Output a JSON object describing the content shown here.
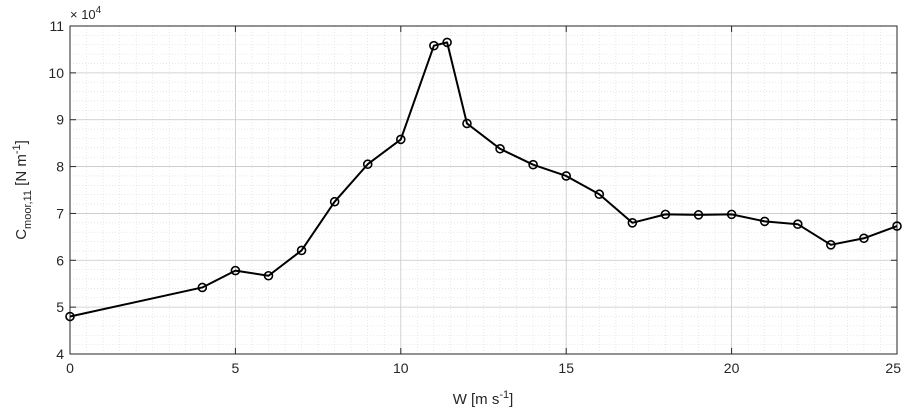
{
  "chart_data": {
    "type": "line",
    "title": "",
    "xlabel": {
      "base": "W [m s",
      "sup": "-1",
      "tail": "]"
    },
    "ylabel": {
      "base": "C",
      "sub": "moor,11",
      "mid": " [N m",
      "sup": "-1",
      "tail": "]"
    },
    "y_multiplier": {
      "prefix": "× 10",
      "exp": "4"
    },
    "xlim": [
      0,
      25
    ],
    "ylim": [
      4,
      11
    ],
    "x_ticks": [
      0,
      5,
      10,
      15,
      20,
      25
    ],
    "y_ticks": [
      4,
      5,
      6,
      7,
      8,
      9,
      10,
      11
    ],
    "x_tick_labels": [
      "0",
      "5",
      "10",
      "15",
      "20",
      "25"
    ],
    "y_tick_labels": [
      "4",
      "5",
      "6",
      "7",
      "8",
      "9",
      "10",
      "11"
    ],
    "grid": true,
    "minor_grid": true,
    "line_color": "#000000",
    "marker": "circle",
    "series": [
      {
        "x": [
          0,
          4,
          5,
          6,
          7,
          8,
          9,
          10,
          11,
          11.4,
          12,
          13,
          14,
          15,
          16,
          17,
          18,
          19,
          20,
          21,
          22,
          23,
          24,
          25
        ],
        "y": [
          4.8,
          5.42,
          5.78,
          5.67,
          6.21,
          7.25,
          8.05,
          8.58,
          10.58,
          10.65,
          8.92,
          8.38,
          8.04,
          7.8,
          7.41,
          6.8,
          6.98,
          6.97,
          6.98,
          6.83,
          6.77,
          6.33,
          6.47,
          6.73
        ]
      }
    ]
  }
}
